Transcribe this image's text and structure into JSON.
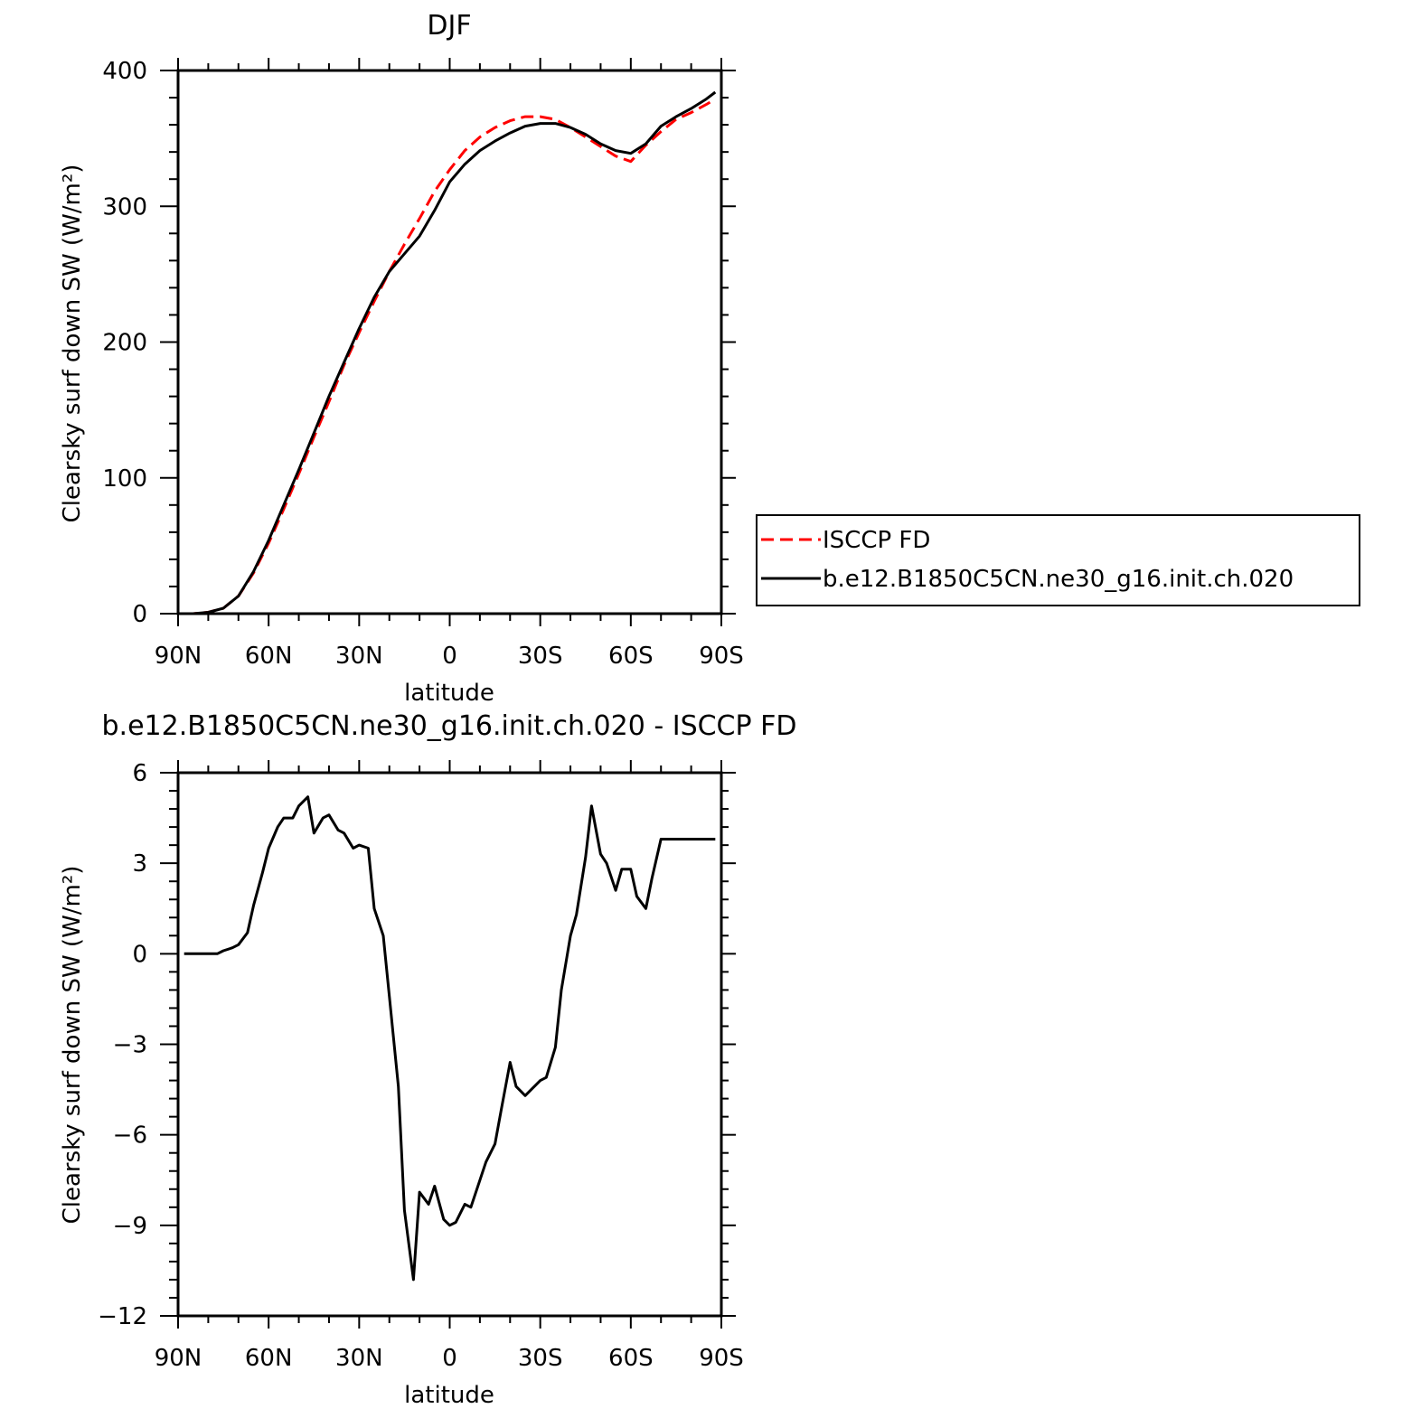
{
  "colors": {
    "obs": "#ff0000",
    "model": "#000000",
    "frame": "#000000",
    "background": "#ffffff"
  },
  "chart_data": [
    {
      "type": "line",
      "title": "DJF",
      "xlabel": "latitude",
      "ylabel": "Clearsky surf down SW (W/m²)",
      "x_ticks": [
        {
          "value": 90,
          "label": "90N"
        },
        {
          "value": 60,
          "label": "60N"
        },
        {
          "value": 30,
          "label": "30N"
        },
        {
          "value": 0,
          "label": "0"
        },
        {
          "value": -30,
          "label": "30S"
        },
        {
          "value": -60,
          "label": "60S"
        },
        {
          "value": -90,
          "label": "90S"
        }
      ],
      "y_ticks": [
        {
          "value": 0,
          "label": "0"
        },
        {
          "value": 100,
          "label": "100"
        },
        {
          "value": 200,
          "label": "200"
        },
        {
          "value": 300,
          "label": "300"
        },
        {
          "value": 400,
          "label": "400"
        }
      ],
      "xlim": [
        90,
        -90
      ],
      "ylim": [
        0,
        400
      ],
      "grid": false,
      "legend": {
        "placement": "right"
      },
      "series": [
        {
          "name": "ISCCP FD",
          "style": "dashed",
          "color": "#ff0000",
          "x": [
            88,
            85,
            80,
            75,
            70,
            65,
            60,
            55,
            50,
            45,
            40,
            35,
            30,
            25,
            20,
            15,
            10,
            5,
            0,
            -5,
            -10,
            -15,
            -20,
            -25,
            -30,
            -35,
            -40,
            -45,
            -50,
            -55,
            -60,
            -65,
            -70,
            -75,
            -80,
            -85,
            -88
          ],
          "y": [
            0,
            0,
            1,
            4,
            13,
            30,
            52,
            77,
            103,
            130,
            156,
            183,
            207,
            230,
            252,
            272,
            291,
            311,
            327,
            341,
            351,
            358,
            363,
            366,
            366,
            364,
            358,
            351,
            344,
            337,
            333,
            345,
            355,
            364,
            369,
            375,
            379
          ]
        },
        {
          "name": "b.e12.B1850C5CN.ne30_g16.init.ch.020",
          "style": "solid",
          "color": "#000000",
          "x": [
            88,
            85,
            80,
            75,
            70,
            65,
            60,
            55,
            50,
            45,
            40,
            35,
            30,
            25,
            20,
            15,
            10,
            5,
            0,
            -5,
            -10,
            -15,
            -20,
            -25,
            -30,
            -35,
            -40,
            -45,
            -50,
            -55,
            -60,
            -65,
            -70,
            -75,
            -80,
            -85,
            -88
          ],
          "y": [
            0,
            0,
            1,
            4,
            13,
            31,
            54,
            80,
            106,
            133,
            160,
            185,
            210,
            233,
            252,
            265,
            278,
            297,
            318,
            331,
            341,
            348,
            354,
            359,
            361,
            361,
            358,
            353,
            346,
            341,
            339,
            346,
            359,
            366,
            372,
            379,
            384
          ]
        }
      ]
    },
    {
      "type": "line",
      "title": "b.e12.B1850C5CN.ne30_g16.init.ch.020 - ISCCP FD",
      "xlabel": "latitude",
      "ylabel": "Clearsky surf down SW (W/m²)",
      "x_ticks": [
        {
          "value": 90,
          "label": "90N"
        },
        {
          "value": 60,
          "label": "60N"
        },
        {
          "value": 30,
          "label": "30N"
        },
        {
          "value": 0,
          "label": "0"
        },
        {
          "value": -30,
          "label": "30S"
        },
        {
          "value": -60,
          "label": "60S"
        },
        {
          "value": -90,
          "label": "90S"
        }
      ],
      "y_ticks": [
        {
          "value": -12,
          "label": "−12"
        },
        {
          "value": -9,
          "label": "−9"
        },
        {
          "value": -6,
          "label": "−6"
        },
        {
          "value": -3,
          "label": "−3"
        },
        {
          "value": 0,
          "label": "0"
        },
        {
          "value": 3,
          "label": "3"
        },
        {
          "value": 6,
          "label": "6"
        }
      ],
      "xlim": [
        90,
        -90
      ],
      "ylim": [
        -12,
        6
      ],
      "grid": false,
      "series": [
        {
          "style": "solid",
          "color": "#000000",
          "x": [
            88,
            85,
            82,
            80,
            77,
            75,
            72,
            70,
            67,
            65,
            62,
            60,
            57,
            55,
            52,
            50,
            47,
            45,
            42,
            40,
            37,
            35,
            32,
            30,
            27,
            25,
            22,
            20,
            17,
            15,
            12,
            10,
            7,
            5,
            2,
            0,
            -2,
            -5,
            -7,
            -10,
            -12,
            -15,
            -17,
            -20,
            -22,
            -25,
            -27,
            -30,
            -32,
            -35,
            -37,
            -40,
            -42,
            -45,
            -47,
            -50,
            -52,
            -55,
            -57,
            -60,
            -62,
            -65,
            -67,
            -70,
            -72,
            -75,
            -77,
            -80,
            -82,
            -85,
            -88
          ],
          "y": [
            0,
            0,
            0,
            0,
            0,
            0.1,
            0.2,
            0.3,
            0.7,
            1.6,
            2.7,
            3.5,
            4.2,
            4.5,
            4.5,
            4.9,
            5.2,
            4.0,
            4.5,
            4.6,
            4.1,
            4.0,
            3.5,
            3.6,
            3.5,
            1.5,
            0.6,
            -1.4,
            -4.4,
            -8.5,
            -10.8,
            -7.9,
            -8.3,
            -7.7,
            -8.8,
            -9.0,
            -8.9,
            -8.3,
            -8.4,
            -7.5,
            -6.9,
            -6.3,
            -5.2,
            -3.6,
            -4.4,
            -4.7,
            -4.5,
            -4.2,
            -4.1,
            -3.1,
            -1.2,
            0.6,
            1.3,
            3.2,
            4.9,
            3.3,
            3.0,
            2.1,
            2.8,
            2.8,
            1.9,
            1.5,
            2.5,
            3.8,
            3.8,
            3.8,
            3.8,
            3.8,
            3.8,
            3.8,
            3.8
          ]
        }
      ]
    }
  ]
}
